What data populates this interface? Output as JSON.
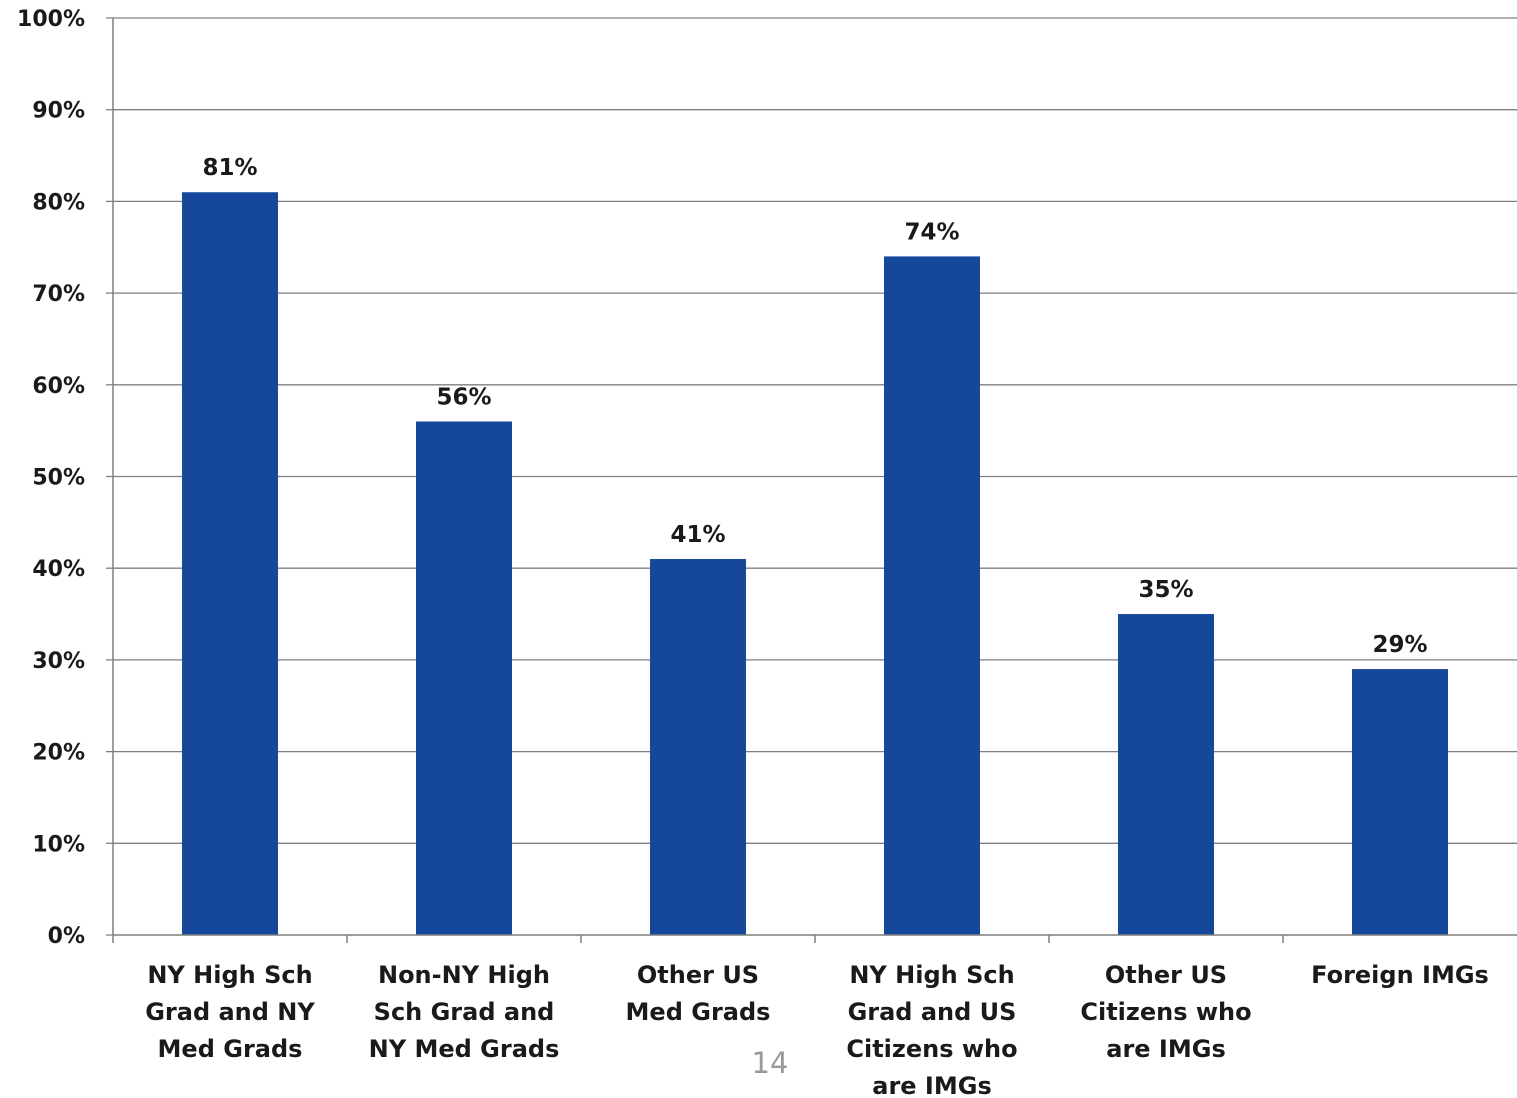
{
  "chart_data": {
    "type": "bar",
    "categories": [
      [
        "NY High Sch",
        "Grad and NY",
        "Med Grads"
      ],
      [
        "Non-NY High",
        "Sch Grad and",
        "NY Med Grads"
      ],
      [
        "Other US",
        "Med Grads"
      ],
      [
        "NY High Sch",
        "Grad and US",
        "Citizens who",
        "are IMGs"
      ],
      [
        "Other US",
        "Citizens who",
        "are IMGs"
      ],
      [
        "Foreign IMGs"
      ]
    ],
    "values": [
      81,
      56,
      41,
      74,
      35,
      29
    ],
    "data_labels": [
      "81%",
      "56%",
      "41%",
      "74%",
      "35%",
      "29%"
    ],
    "yticks": [
      "0%",
      "10%",
      "20%",
      "30%",
      "40%",
      "50%",
      "60%",
      "70%",
      "80%",
      "90%",
      "100%"
    ],
    "ylim": [
      0,
      100
    ],
    "grid": true,
    "bar_color": "#15489b"
  },
  "page_number": "14"
}
